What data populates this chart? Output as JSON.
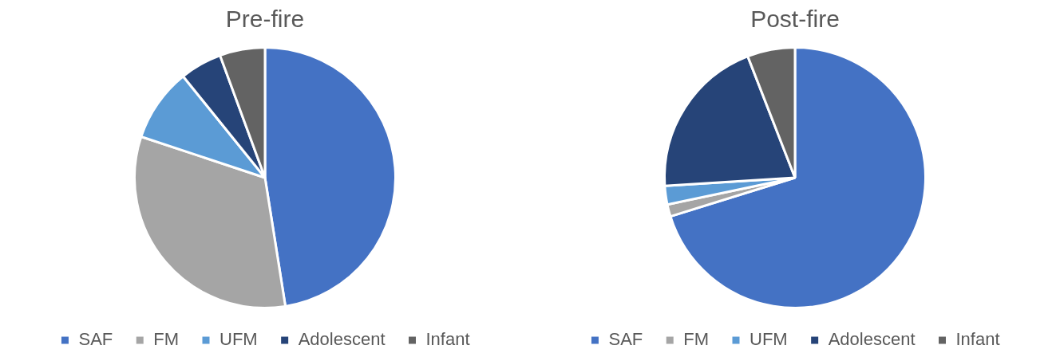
{
  "chart_data": [
    {
      "type": "pie",
      "title": "Pre-fire",
      "categories": [
        "SAF",
        "FM",
        "UFM",
        "Adolescent",
        "Infant"
      ],
      "values": [
        47.5,
        32.6,
        9.1,
        5.2,
        5.6
      ],
      "colors": [
        "#4472c4",
        "#a5a5a5",
        "#5b9bd5",
        "#264478",
        "#636363"
      ],
      "legend": "bottom"
    },
    {
      "type": "pie",
      "title": "Post-fire",
      "categories": [
        "SAF",
        "FM",
        "UFM",
        "Adolescent",
        "Infant"
      ],
      "values": [
        70.2,
        1.5,
        2.3,
        20.1,
        5.9
      ],
      "colors": [
        "#4472c4",
        "#a5a5a5",
        "#5b9bd5",
        "#264478",
        "#636363"
      ],
      "legend": "bottom"
    }
  ]
}
